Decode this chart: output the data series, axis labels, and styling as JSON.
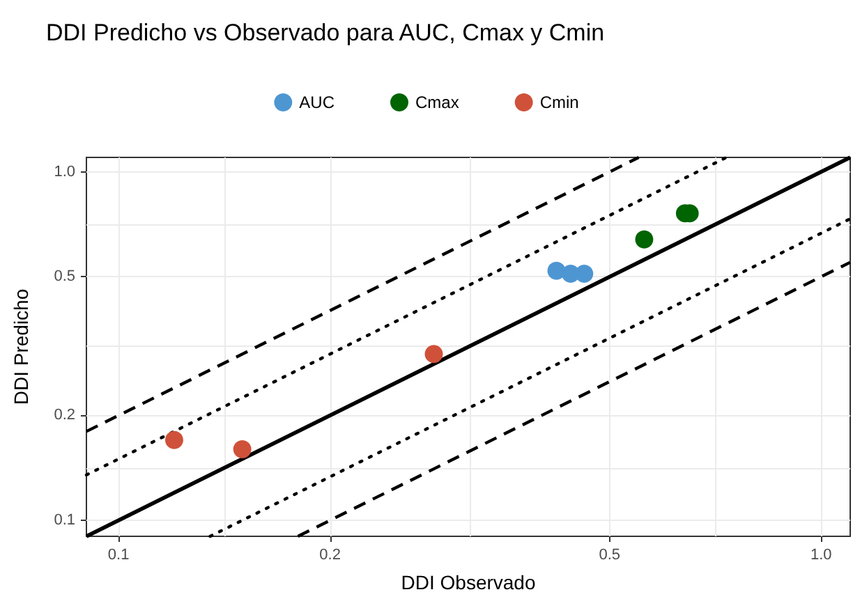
{
  "chart_data": {
    "type": "scatter",
    "title": "DDI Predicho vs Observado para AUC, Cmax y Cmin",
    "xlabel": "DDI Observado",
    "ylabel": "DDI Predicho",
    "log": "xy",
    "grid": true,
    "legend": "top",
    "marker": "circle",
    "xlim": [
      0.09,
      1.1
    ],
    "ylim": [
      0.09,
      1.1
    ],
    "xticks": [
      0.1,
      {
        "value": 0.1414,
        "label": null
      },
      0.2,
      {
        "value": 0.3162,
        "label": null
      },
      0.5,
      {
        "value": 0.7071,
        "label": null
      },
      {
        "value": 1,
        "label": "1.0"
      }
    ],
    "yticks": [
      0.1,
      {
        "value": 0.1414,
        "label": null
      },
      0.2,
      {
        "value": 0.3162,
        "label": null
      },
      0.5,
      {
        "value": 0.7071,
        "label": null
      },
      {
        "value": 1,
        "label": "1.0"
      }
    ],
    "series": [
      {
        "type": "line",
        "marker": "none",
        "line_style": "solid",
        "color": "#000000",
        "x": [
          0.09,
          1.1
        ],
        "values": [
          0.09,
          1.1
        ]
      },
      {
        "type": "line",
        "marker": "none",
        "line_style": "dotted",
        "color": "#000000",
        "x": [
          0.09,
          0.7333
        ],
        "values": [
          0.135,
          1.1
        ]
      },
      {
        "type": "line",
        "marker": "none",
        "line_style": "dotted",
        "color": "#000000",
        "x": [
          0.135,
          1.1
        ],
        "values": [
          0.09,
          0.7333
        ]
      },
      {
        "type": "line",
        "marker": "none",
        "line_style": "dashed",
        "color": "#000000",
        "x": [
          0.09,
          0.55
        ],
        "values": [
          0.18,
          1.1
        ]
      },
      {
        "type": "line",
        "marker": "none",
        "line_style": "dashed",
        "color": "#000000",
        "x": [
          0.18,
          1.1
        ],
        "values": [
          0.09,
          0.55
        ]
      },
      {
        "name": "AUC",
        "color": "#4e96d2",
        "x": [
          0.42,
          0.44,
          0.46
        ],
        "values": [
          0.52,
          0.51,
          0.51
        ]
      },
      {
        "name": "Cmax",
        "color": "#006400",
        "x": [
          0.56,
          0.64,
          0.65
        ],
        "values": [
          0.64,
          0.76,
          0.76
        ]
      },
      {
        "name": "Cmin",
        "color": "#d0513a",
        "x": [
          0.12,
          0.15,
          0.281
        ],
        "values": [
          0.17,
          0.16,
          0.3
        ]
      }
    ]
  }
}
